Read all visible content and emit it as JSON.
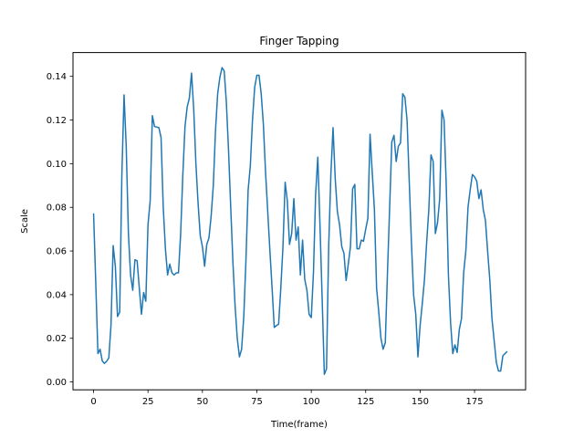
{
  "chart_data": {
    "type": "line",
    "title": "Finger Tapping",
    "xlabel": "Time(frame)",
    "ylabel": "Scale",
    "xlim": [
      -9.45,
      198.45
    ],
    "ylim": [
      -0.0036,
      0.1509
    ],
    "xticks": [
      0,
      25,
      50,
      75,
      100,
      125,
      150,
      175
    ],
    "xtick_labels": [
      "0",
      "25",
      "50",
      "75",
      "100",
      "125",
      "150",
      "175"
    ],
    "yticks": [
      0.0,
      0.02,
      0.04,
      0.06,
      0.08,
      0.1,
      0.12,
      0.14
    ],
    "ytick_labels": [
      "0.00",
      "0.02",
      "0.04",
      "0.06",
      "0.08",
      "0.10",
      "0.12",
      "0.14"
    ],
    "grid": false,
    "legend": null,
    "series": [
      {
        "color": "#1f77b4",
        "values": [
          0.0772,
          0.0455,
          0.013,
          0.015,
          0.0096,
          0.0085,
          0.0095,
          0.011,
          0.026,
          0.0625,
          0.053,
          0.03,
          0.032,
          0.095,
          0.1315,
          0.108,
          0.068,
          0.049,
          0.042,
          0.056,
          0.0555,
          0.043,
          0.031,
          0.041,
          0.037,
          0.072,
          0.083,
          0.122,
          0.117,
          0.1168,
          0.1165,
          0.112,
          0.08,
          0.061,
          0.049,
          0.054,
          0.05,
          0.049,
          0.05,
          0.05,
          0.068,
          0.095,
          0.117,
          0.126,
          0.13,
          0.1415,
          0.125,
          0.1,
          0.082,
          0.067,
          0.062,
          0.053,
          0.063,
          0.066,
          0.076,
          0.09,
          0.115,
          0.132,
          0.1395,
          0.144,
          0.1425,
          0.128,
          0.106,
          0.08,
          0.055,
          0.035,
          0.02,
          0.0115,
          0.015,
          0.03,
          0.056,
          0.088,
          0.099,
          0.12,
          0.135,
          0.1405,
          0.1405,
          0.132,
          0.118,
          0.096,
          0.078,
          0.06,
          0.043,
          0.025,
          0.0258,
          0.0265,
          0.043,
          0.062,
          0.0915,
          0.083,
          0.063,
          0.068,
          0.084,
          0.065,
          0.071,
          0.049,
          0.065,
          0.047,
          0.042,
          0.031,
          0.0295,
          0.05,
          0.086,
          0.103,
          0.072,
          0.038,
          0.0035,
          0.006,
          0.062,
          0.095,
          0.1165,
          0.093,
          0.078,
          0.072,
          0.062,
          0.059,
          0.0465,
          0.054,
          0.062,
          0.0885,
          0.0905,
          0.061,
          0.061,
          0.065,
          0.0645,
          0.07,
          0.075,
          0.1135,
          0.096,
          0.079,
          0.043,
          0.032,
          0.02,
          0.015,
          0.018,
          0.05,
          0.08,
          0.11,
          0.113,
          0.101,
          0.108,
          0.1095,
          0.132,
          0.1305,
          0.12,
          0.092,
          0.064,
          0.04,
          0.031,
          0.0115,
          0.026,
          0.036,
          0.047,
          0.064,
          0.079,
          0.104,
          0.101,
          0.068,
          0.073,
          0.084,
          0.1245,
          0.12,
          0.09,
          0.049,
          0.027,
          0.013,
          0.017,
          0.0135,
          0.024,
          0.029,
          0.05,
          0.06,
          0.08,
          0.088,
          0.095,
          0.094,
          0.092,
          0.084,
          0.088,
          0.079,
          0.074,
          0.06,
          0.047,
          0.029,
          0.019,
          0.009,
          0.005,
          0.005,
          0.012,
          0.013,
          0.014
        ]
      }
    ]
  }
}
